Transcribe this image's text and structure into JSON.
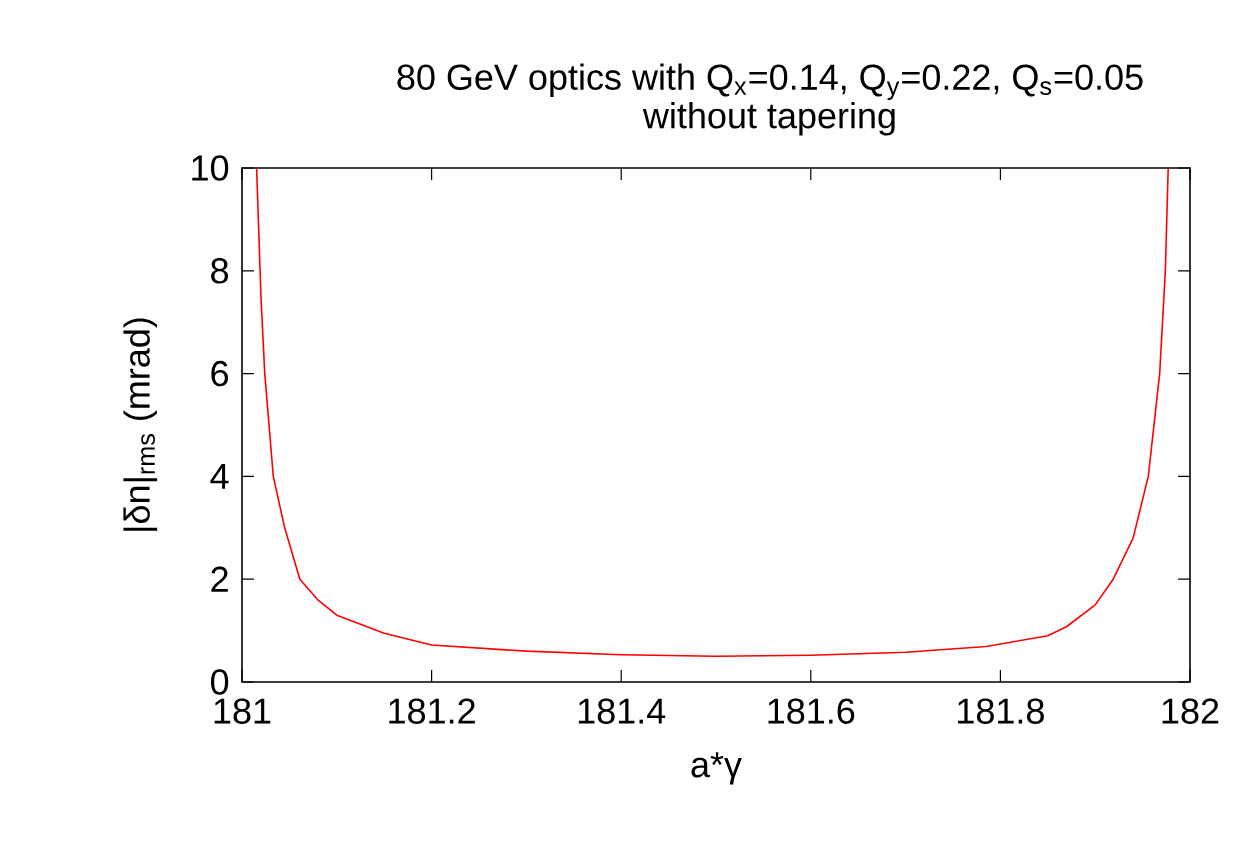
{
  "chart_data": {
    "type": "line",
    "title": "80 GeV optics with Q$_{x}$=0.14, Q$_{y}$=0.22, Q$_{s}$=0.05\nwithout tapering",
    "xlabel": "a*γ",
    "ylabel": "|δn|$_{rms}$ (mrad)",
    "xlim": [
      181,
      182
    ],
    "ylim": [
      0,
      10
    ],
    "xticks": [
      181,
      181.2,
      181.4,
      181.6,
      181.8,
      182
    ],
    "yticks": [
      0,
      2,
      4,
      6,
      8,
      10
    ],
    "x": [
      181.0154,
      181.02,
      181.024,
      181.033,
      181.045,
      181.061,
      181.08,
      181.1,
      181.15,
      181.2,
      181.3,
      181.4,
      181.5,
      181.6,
      181.7,
      181.785,
      181.85,
      181.87,
      181.9,
      181.919,
      181.94,
      181.956,
      181.968,
      181.974,
      181.977
    ],
    "series": [
      {
        "color": "#ff0000",
        "values": [
          10,
          7.5,
          6,
          4,
          3,
          2,
          1.6,
          1.3,
          0.95,
          0.72,
          0.6,
          0.53,
          0.5,
          0.52,
          0.58,
          0.69,
          0.9,
          1.08,
          1.5,
          2,
          2.8,
          4,
          6,
          8,
          10
        ]
      }
    ]
  }
}
